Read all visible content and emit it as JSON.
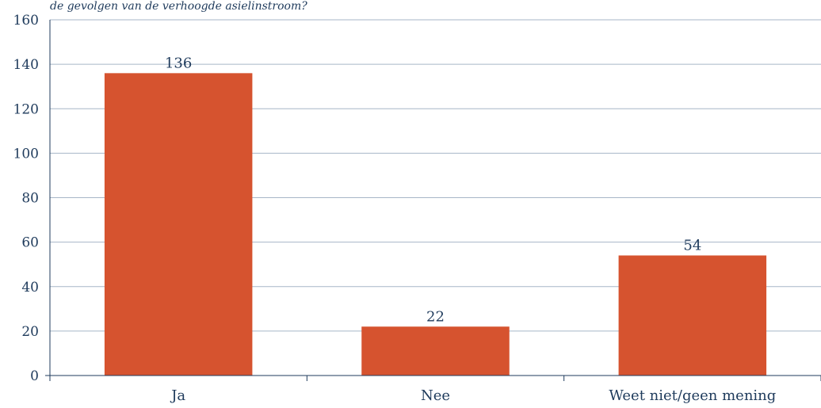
{
  "chart_data": {
    "type": "bar",
    "subtitle": "de gevolgen van de verhoogde asielinstroom?",
    "categories": [
      "Ja",
      "Nee",
      "Weet niet/geen mening"
    ],
    "values": [
      136,
      22,
      54
    ],
    "ylim": [
      0,
      160
    ],
    "yticks": [
      0,
      20,
      40,
      60,
      80,
      100,
      120,
      140,
      160
    ],
    "bar_color": "#d6532f",
    "text_color": "#1f3b5c",
    "grid_color": "#a7b6c7",
    "axis_color": "#1f3b5c",
    "grid": true
  }
}
